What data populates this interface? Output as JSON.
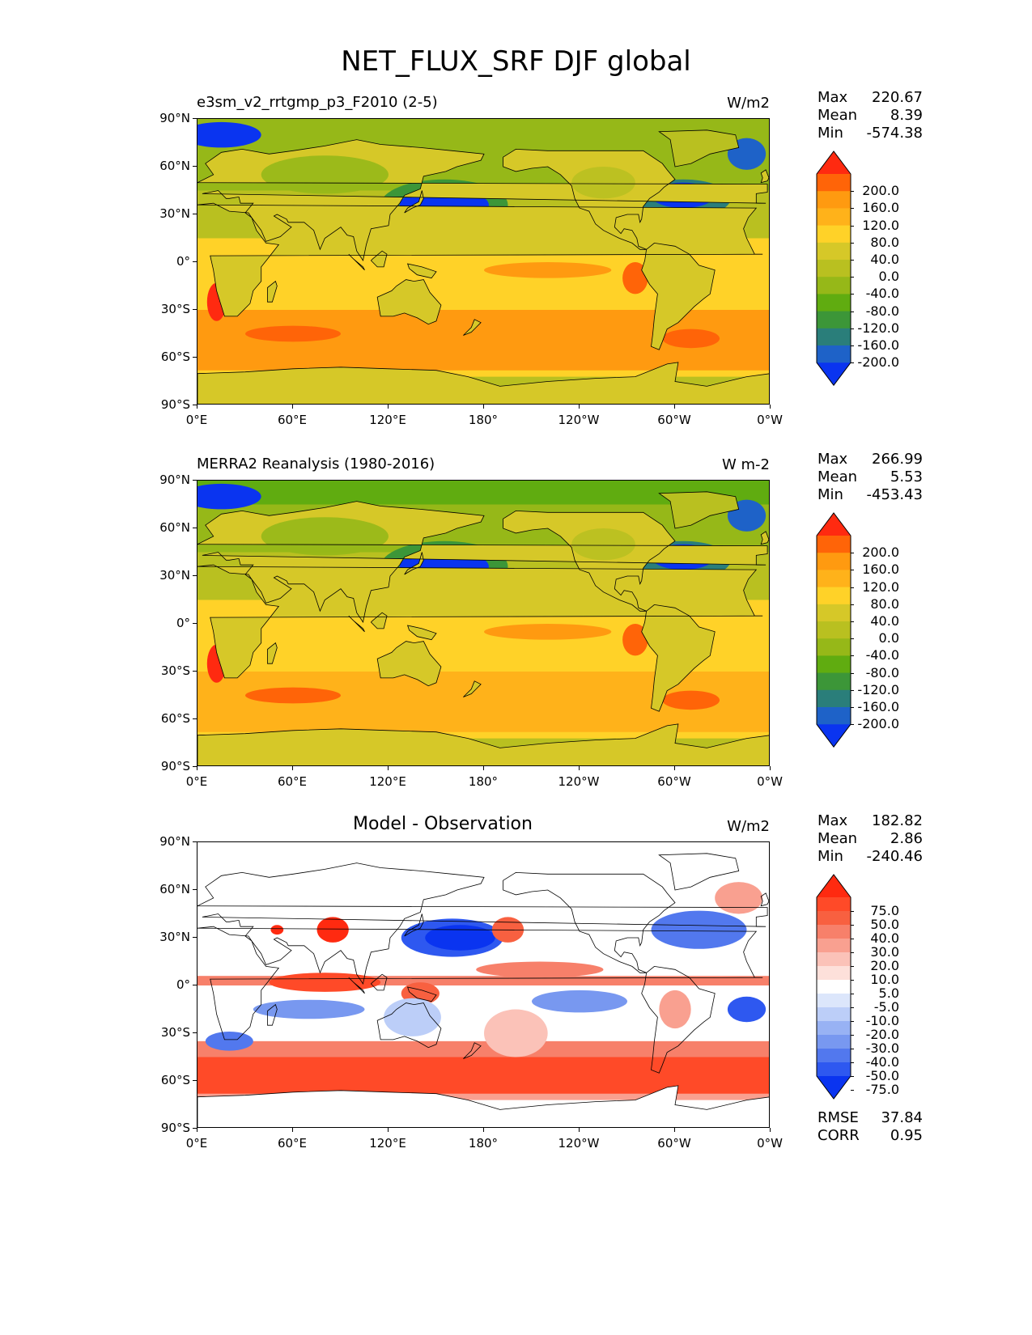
{
  "figure_title": "NET_FLUX_SRF DJF global",
  "lat_ticks": [
    "90°N",
    "60°N",
    "30°N",
    "0°",
    "30°S",
    "60°S",
    "90°S"
  ],
  "lon_ticks": [
    "0°E",
    "60°E",
    "120°E",
    "180°",
    "120°W",
    "60°W",
    "0°W"
  ],
  "panels": [
    {
      "title": "e3sm_v2_rrtgmp_p3_F2010 (2-5)",
      "units": "W/m2",
      "stats": [
        {
          "label": "Max",
          "value": "220.67"
        },
        {
          "label": "Mean",
          "value": "8.39"
        },
        {
          "label": "Min",
          "value": "-574.38"
        }
      ],
      "colorbar_labels": [
        "200.0",
        "160.0",
        "120.0",
        "80.0",
        "40.0",
        "0.0",
        "-40.0",
        "-80.0",
        "-120.0",
        "-160.0",
        "-200.0"
      ],
      "colorbar_colors": [
        "#ff2a10",
        "#ff6408",
        "#ff9a10",
        "#ffb21a",
        "#ffd228",
        "#d6c828",
        "#b9c020",
        "#96b818",
        "#60ac10",
        "#3c9638",
        "#2a7e7a",
        "#1e62c8",
        "#0a34f0"
      ]
    },
    {
      "title": "MERRA2 Reanalysis (1980-2016)",
      "units": "W m-2",
      "stats": [
        {
          "label": "Max",
          "value": "266.99"
        },
        {
          "label": "Mean",
          "value": "5.53"
        },
        {
          "label": "Min",
          "value": "-453.43"
        }
      ],
      "colorbar_labels": [
        "200.0",
        "160.0",
        "120.0",
        "80.0",
        "40.0",
        "0.0",
        "-40.0",
        "-80.0",
        "-120.0",
        "-160.0",
        "-200.0"
      ],
      "colorbar_colors": [
        "#ff2a10",
        "#ff6408",
        "#ff9a10",
        "#ffb21a",
        "#ffd228",
        "#d6c828",
        "#b9c020",
        "#96b818",
        "#60ac10",
        "#3c9638",
        "#2a7e7a",
        "#1e62c8",
        "#0a34f0"
      ]
    },
    {
      "title": "Model - Observation",
      "units": "W/m2",
      "stats": [
        {
          "label": "Max",
          "value": "182.82"
        },
        {
          "label": "Mean",
          "value": "2.86"
        },
        {
          "label": "Min",
          "value": "-240.46"
        }
      ],
      "extra_stats": [
        {
          "label": "RMSE",
          "value": "37.84"
        },
        {
          "label": "CORR",
          "value": "0.95"
        }
      ],
      "colorbar_labels": [
        "75.0",
        "50.0",
        "40.0",
        "30.0",
        "20.0",
        "10.0",
        "5.0",
        "-5.0",
        "-10.0",
        "-20.0",
        "-30.0",
        "-40.0",
        "-50.0",
        "-75.0"
      ],
      "colorbar_colors": [
        "#ff2a10",
        "#ff4a28",
        "#f86040",
        "#f7806a",
        "#f9a090",
        "#fbc2b8",
        "#fde0da",
        "#ffffff",
        "#dce6fb",
        "#bccef8",
        "#98b2f4",
        "#7898f0",
        "#5278ee",
        "#2e58f0",
        "#0a34f0"
      ]
    }
  ],
  "chart_data": [
    {
      "type": "heatmap",
      "title": "e3sm_v2_rrtgmp_p3_F2010 (2-5)",
      "units": "W/m2",
      "x_range_deg": [
        0,
        360
      ],
      "y_range_deg": [
        -90,
        90
      ],
      "levels": [
        -200,
        -160,
        -120,
        -80,
        -40,
        0,
        40,
        80,
        120,
        160,
        200
      ],
      "max": 220.67,
      "mean": 8.39,
      "min": -574.38
    },
    {
      "type": "heatmap",
      "title": "MERRA2 Reanalysis (1980-2016)",
      "units": "W m-2",
      "x_range_deg": [
        0,
        360
      ],
      "y_range_deg": [
        -90,
        90
      ],
      "levels": [
        -200,
        -160,
        -120,
        -80,
        -40,
        0,
        40,
        80,
        120,
        160,
        200
      ],
      "max": 266.99,
      "mean": 5.53,
      "min": -453.43
    },
    {
      "type": "heatmap",
      "title": "Model - Observation",
      "units": "W/m2",
      "x_range_deg": [
        0,
        360
      ],
      "y_range_deg": [
        -90,
        90
      ],
      "levels": [
        -75,
        -50,
        -40,
        -30,
        -20,
        -10,
        -5,
        5,
        10,
        20,
        30,
        40,
        50,
        75
      ],
      "max": 182.82,
      "mean": 2.86,
      "min": -240.46,
      "rmse": 37.84,
      "corr": 0.95
    }
  ]
}
